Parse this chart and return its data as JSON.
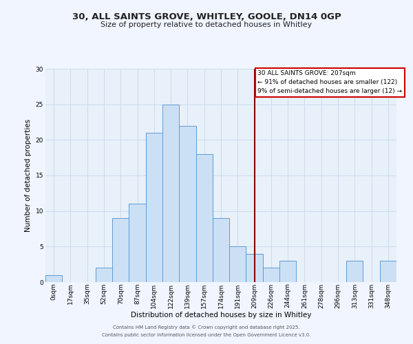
{
  "title": "30, ALL SAINTS GROVE, WHITLEY, GOOLE, DN14 0GP",
  "subtitle": "Size of property relative to detached houses in Whitley",
  "xlabel": "Distribution of detached houses by size in Whitley",
  "ylabel": "Number of detached properties",
  "footer_line1": "Contains HM Land Registry data © Crown copyright and database right 2025.",
  "footer_line2": "Contains public sector information licensed under the Open Government Licence v3.0.",
  "bin_labels": [
    "0sqm",
    "17sqm",
    "35sqm",
    "52sqm",
    "70sqm",
    "87sqm",
    "104sqm",
    "122sqm",
    "139sqm",
    "157sqm",
    "174sqm",
    "191sqm",
    "209sqm",
    "226sqm",
    "244sqm",
    "261sqm",
    "278sqm",
    "296sqm",
    "313sqm",
    "331sqm",
    "348sqm"
  ],
  "bar_values": [
    1,
    0,
    0,
    2,
    9,
    11,
    21,
    25,
    22,
    18,
    9,
    5,
    4,
    2,
    3,
    0,
    0,
    0,
    3,
    0,
    3
  ],
  "bar_color": "#cce0f5",
  "bar_edgecolor": "#5b9bd5",
  "grid_color": "#c8d8e8",
  "background_color": "#e8f0fa",
  "vline_x": 12.0,
  "vline_color": "#8b0000",
  "annotation_title": "30 ALL SAINTS GROVE: 207sqm",
  "annotation_line1": "← 91% of detached houses are smaller (122)",
  "annotation_line2": "9% of semi-detached houses are larger (12) →",
  "annotation_box_edgecolor": "#cc0000",
  "annotation_box_facecolor": "#ffffff",
  "ylim": [
    0,
    30
  ],
  "yticks": [
    0,
    5,
    10,
    15,
    20,
    25,
    30
  ],
  "title_fontsize": 9.5,
  "subtitle_fontsize": 8,
  "ylabel_fontsize": 7.5,
  "xlabel_fontsize": 7.5,
  "tick_fontsize": 6.5,
  "footer_fontsize": 5.0,
  "annotation_fontsize": 6.5
}
